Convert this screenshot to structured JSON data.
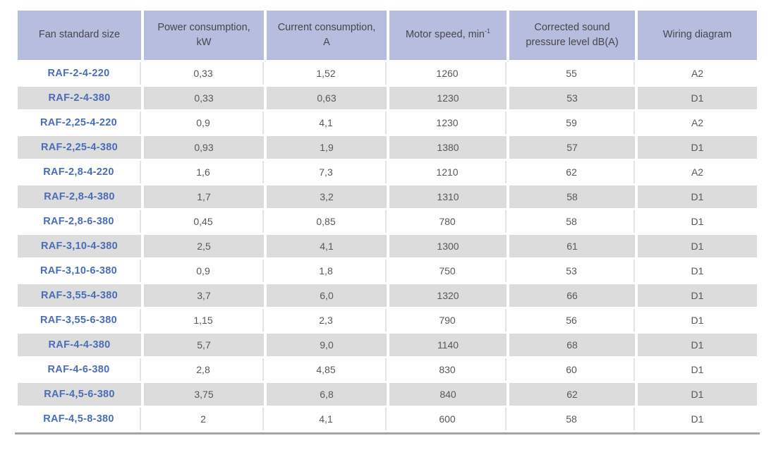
{
  "colors": {
    "header_bg": "#b6bddf",
    "header_text": "#47474a",
    "row_bg": "#ffffff",
    "row_alt_bg": "#dcdcdc",
    "model_text": "#4a6db7",
    "body_text": "#58585a",
    "bottom_border": "#a5a5a5",
    "white_row_divider": "#e4e4e4"
  },
  "table": {
    "fields": [
      "model",
      "power",
      "current",
      "speed",
      "noise",
      "wiring"
    ],
    "columns": [
      {
        "field": "model",
        "line1": "Fan standard size",
        "line2": ""
      },
      {
        "field": "power",
        "line1": "Power consumption,",
        "line2": "kW"
      },
      {
        "field": "current",
        "line1": "Current consumption,",
        "line2": "A"
      },
      {
        "field": "speed",
        "line1": "Motor speed, min",
        "sup1": "-1",
        "line2": ""
      },
      {
        "field": "noise",
        "line1": "Corrected sound",
        "line2": "pressure level dB(A)"
      },
      {
        "field": "wiring",
        "line1": "Wiring diagram",
        "line2": ""
      }
    ],
    "rows": [
      {
        "model": "RAF-2-4-220",
        "power": "0,33",
        "current": "1,52",
        "speed": "1260",
        "noise": "55",
        "wiring": "A2"
      },
      {
        "model": "RAF-2-4-380",
        "power": "0,33",
        "current": "0,63",
        "speed": "1230",
        "noise": "53",
        "wiring": "D1"
      },
      {
        "model": "RAF-2,25-4-220",
        "power": "0,9",
        "current": "4,1",
        "speed": "1230",
        "noise": "59",
        "wiring": "A2"
      },
      {
        "model": "RAF-2,25-4-380",
        "power": "0,93",
        "current": "1,9",
        "speed": "1380",
        "noise": "57",
        "wiring": "D1"
      },
      {
        "model": "RAF-2,8-4-220",
        "power": "1,6",
        "current": "7,3",
        "speed": "1210",
        "noise": "62",
        "wiring": "A2"
      },
      {
        "model": "RAF-2,8-4-380",
        "power": "1,7",
        "current": "3,2",
        "speed": "1310",
        "noise": "58",
        "wiring": "D1"
      },
      {
        "model": "RAF-2,8-6-380",
        "power": "0,45",
        "current": "0,85",
        "speed": "780",
        "noise": "58",
        "wiring": "D1"
      },
      {
        "model": "RAF-3,10-4-380",
        "power": "2,5",
        "current": "4,1",
        "speed": "1300",
        "noise": "61",
        "wiring": "D1"
      },
      {
        "model": "RAF-3,10-6-380",
        "power": "0,9",
        "current": "1,8",
        "speed": "750",
        "noise": "53",
        "wiring": "D1"
      },
      {
        "model": "RAF-3,55-4-380",
        "power": "3,7",
        "current": "6,0",
        "speed": "1320",
        "noise": "66",
        "wiring": "D1"
      },
      {
        "model": "RAF-3,55-6-380",
        "power": "1,15",
        "current": "2,3",
        "speed": "790",
        "noise": "56",
        "wiring": "D1"
      },
      {
        "model": "RAF-4-4-380",
        "power": "5,7",
        "current": "9,0",
        "speed": "1140",
        "noise": "68",
        "wiring": "D1"
      },
      {
        "model": "RAF-4-6-380",
        "power": "2,8",
        "current": "4,85",
        "speed": "830",
        "noise": "60",
        "wiring": "D1"
      },
      {
        "model": "RAF-4,5-6-380",
        "power": "3,75",
        "current": "6,8",
        "speed": "840",
        "noise": "62",
        "wiring": "D1"
      },
      {
        "model": "RAF-4,5-8-380",
        "power": "2",
        "current": "4,1",
        "speed": "600",
        "noise": "58",
        "wiring": "D1"
      }
    ]
  }
}
